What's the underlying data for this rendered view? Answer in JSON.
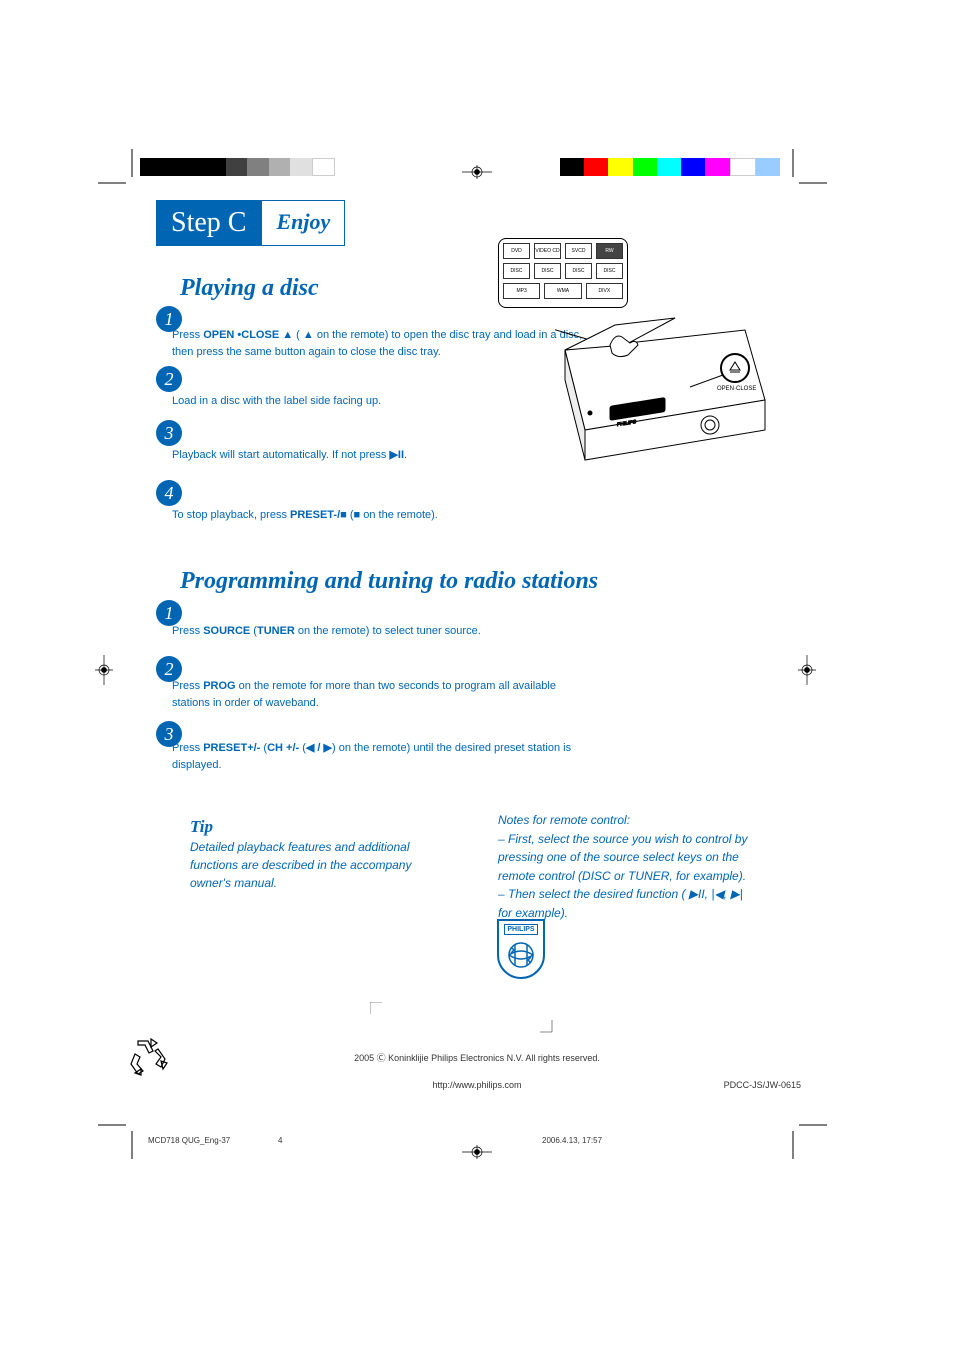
{
  "colors": {
    "brand_blue": "#0066b3",
    "text_blue": "#0066b3",
    "background": "#ffffff",
    "black": "#000000"
  },
  "colorbar_left": [
    "#000000",
    "#000000",
    "#000000",
    "#000000",
    "#404040",
    "#808080",
    "#b0b0b0",
    "#e0e0e0",
    "#ffffff"
  ],
  "colorbar_right": [
    "#000000",
    "#ff0000",
    "#ffff00",
    "#00ff00",
    "#00ffff",
    "#0000ff",
    "#ff00ff",
    "#ffffff",
    "#99ccff"
  ],
  "step_header": {
    "step": "Step C",
    "label": "Enjoy"
  },
  "sections": {
    "playing": {
      "title": "Playing a disc",
      "steps": [
        {
          "num": "1",
          "html": "Press <b>OPEN •CLOSE ▲</b>  ( <b>▲</b>  on the remote) to open the disc tray and load in a disc, then press the same button again to close the disc tray."
        },
        {
          "num": "2",
          "html": "Load in a disc with the label side facing up."
        },
        {
          "num": "3",
          "html": "Playback will start automatically. If not press <b>▶II</b>."
        },
        {
          "num": "4",
          "html": "To stop playback, press <b>PRESET-/■</b> (<b>■</b> on the remote)."
        }
      ]
    },
    "programming": {
      "title": "Programming and tuning to radio stations",
      "steps": [
        {
          "num": "1",
          "html": "Press <b>SOURCE</b> (<b>TUNER</b> on the remote) to select tuner source."
        },
        {
          "num": "2",
          "html": "Press <b>PROG</b> on the remote for more than two seconds to program all available stations in order of waveband."
        },
        {
          "num": "3",
          "html": "Press <b>PRESET+/-</b>  (<b>CH +/-</b> (<b>◀ / ▶</b>)<b></b> on the remote) until the desired preset station is displayed."
        }
      ]
    }
  },
  "logo_badges": [
    "DVD",
    "VIDEO CD",
    "SVCD",
    "RW",
    "DISC",
    "DISC",
    "DISC",
    "DISC",
    "MP3",
    "WMA",
    "DIVX"
  ],
  "player_label": "OPEN·CLOSE",
  "tip": {
    "title": "Tip",
    "body": "Detailed playback features and additional functions are described in the accompany owner's manual."
  },
  "notes": "Notes for remote control:\n– First, select the source you wish to control by pressing one of the source select keys on the remote control (DISC or TUNER, for example).\n– Then select the desired function ( ▶II, |◀, ▶| for example).",
  "philips_brand": "PHILIPS",
  "footer": {
    "copyright": "2005 Ⓒ Koninklijie Philips Electronics N.V. All rights reserved.",
    "url": "http://www.philips.com",
    "code": "PDCC-JS/JW-0615"
  },
  "meta": {
    "doc": "MCD718 QUG_Eng-37",
    "page": "4",
    "date": "2006.4.13, 17:57"
  }
}
